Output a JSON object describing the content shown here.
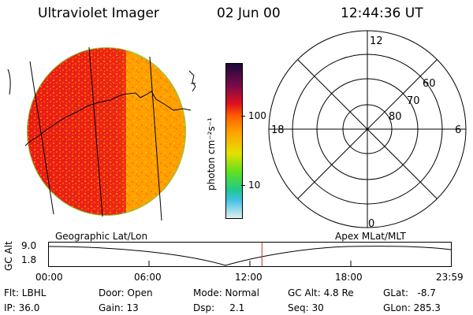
{
  "header": {
    "title": "Ultraviolet Imager",
    "date": "02 Jun 00",
    "time": "12:44:36 UT"
  },
  "colorbar": {
    "unit_label": "photon cm⁻²s⁻¹",
    "ticks": [
      "100",
      "10"
    ],
    "colors": [
      "#1a0a3a",
      "#7a0a4a",
      "#e01020",
      "#ff6000",
      "#ffa000",
      "#e6e000",
      "#60e020",
      "#20c890",
      "#40c0e0",
      "#e0f0f0"
    ]
  },
  "polar": {
    "mlt_labels": {
      "top": "12",
      "left": "18",
      "right": "6",
      "bottom": "0"
    },
    "lat_labels": [
      "60",
      "70",
      "80"
    ]
  },
  "timeline": {
    "left_label": "Geographic Lat/Lon",
    "right_label": "Apex MLat/MLT",
    "axis_label": "GC Alt",
    "y_ticks": [
      "9.0",
      "1.8"
    ],
    "x_ticks": [
      "00:00",
      "06:00",
      "12:00",
      "18:00",
      "23:59"
    ],
    "current_time": "12:44",
    "marker_color": "#c03030"
  },
  "info": {
    "flt": "Flt: LBHL",
    "door": "Door: Open",
    "mode": "Mode: Normal",
    "gc_alt": "GC Alt: 4.8 Re",
    "glat": "GLat:   -8.7",
    "ip": "IP: 36.0",
    "gain": "Gain: 13",
    "dsp": "Dsp:     2.1",
    "seq": "Seq: 30",
    "glon": "GLon: 285.3"
  },
  "image": {
    "disk_colors": [
      "#ff9a00",
      "#e81818",
      "#d8e000",
      "#50d030"
    ]
  }
}
